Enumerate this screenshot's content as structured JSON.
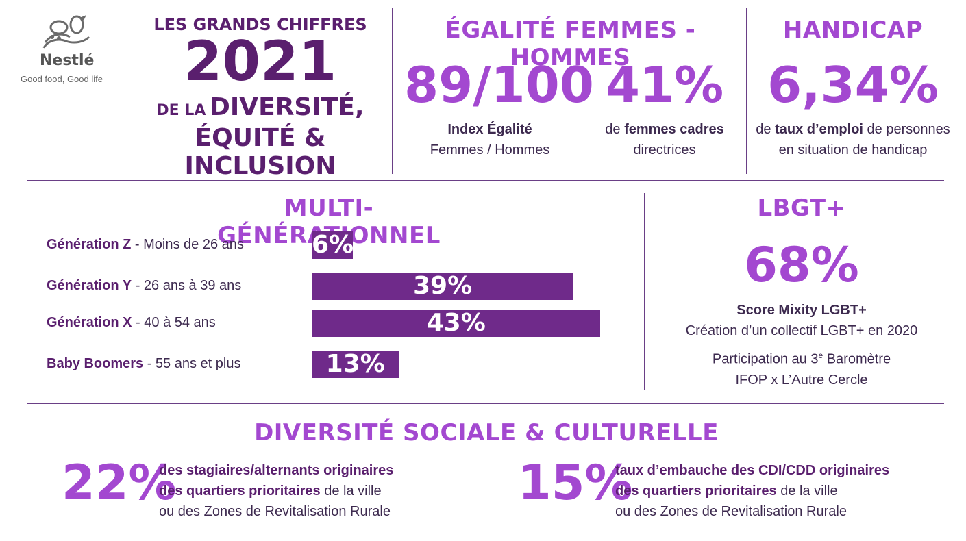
{
  "logo": {
    "brand": "Nestlé",
    "tagline": "Good food, Good life"
  },
  "title": {
    "line1": "LES GRANDS CHIFFRES",
    "year": "2021",
    "line3_small": "DE LA",
    "line3_big": "DIVERSITÉ,",
    "line4": "ÉQUITÉ & INCLUSION"
  },
  "egalite": {
    "heading": "ÉGALITÉ FEMMES - HOMMES",
    "index_value": "89/100",
    "index_bold": "Index Égalité",
    "index_rest": "Femmes / Hommes",
    "cadres_value": "41%",
    "cadres_pre": "de",
    "cadres_bold": "femmes cadres",
    "cadres_rest": "directrices"
  },
  "handicap": {
    "heading": "HANDICAP",
    "value": "6,34%",
    "pre": "de",
    "bold": "taux d’emploi",
    "post": "de personnes",
    "line2": "en situation de handicap"
  },
  "multigen": {
    "heading": "MULTI-GÉNÉRATIONNEL",
    "rows": [
      {
        "name": "Génération Z",
        "desc": "- Moins de 26 ans",
        "value": 6,
        "label": "6%"
      },
      {
        "name": "Génération Y",
        "desc": "- 26 ans à 39 ans",
        "value": 39,
        "label": "39%"
      },
      {
        "name": "Génération X",
        "desc": "- 40 à 54 ans",
        "value": 43,
        "label": "43%"
      },
      {
        "name": "Baby Boomers",
        "desc": "- 55 ans et plus",
        "value": 13,
        "label": "13%"
      }
    ]
  },
  "lgbt": {
    "heading": "LBGT+",
    "value": "68%",
    "score": "Score Mixity LGBT+",
    "line1": "Création d’un collectif LGBT+ en 2020",
    "line2_pre": "Participation au 3",
    "line2_sup": "e",
    "line2_post": "Baromètre",
    "line3": "IFOP x L’Autre Cercle"
  },
  "diversite": {
    "heading": "DIVERSITÉ SOCIALE & CULTURELLE",
    "left": {
      "value": "22%",
      "bold1": "des stagiaires/alternants originaires",
      "bold2": "des quartiers prioritaires",
      "rest2": "de la ville",
      "line3": "ou des Zones de Revitalisation Rurale"
    },
    "right": {
      "value": "15%",
      "bold1": "taux d’embauche des CDI/CDD originaires",
      "bold2": "des quartiers prioritaires",
      "rest2": "de la ville",
      "line3": "ou des Zones de Revitalisation Rurale"
    }
  },
  "colors": {
    "light_purple": "#a348d0",
    "dark_purple": "#5a1f6e",
    "bar": "#6f2a8a"
  }
}
